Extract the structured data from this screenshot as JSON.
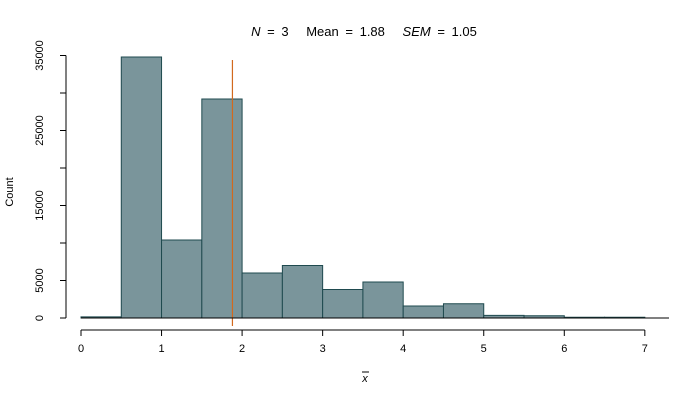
{
  "chart_data": {
    "type": "bar",
    "title": {
      "n_label": "N",
      "n_value": "3",
      "mean_label": "Mean",
      "mean_value": "1.88",
      "sem_label": "SEM",
      "sem_value": "1.05",
      "equals": "="
    },
    "xlabel": "x",
    "ylabel": "Count",
    "xlim": [
      0,
      7.3
    ],
    "ylim": [
      0,
      36000
    ],
    "x_ticks": [
      0,
      1,
      2,
      3,
      4,
      5,
      6,
      7
    ],
    "x_tick_labels": [
      "0",
      "1",
      "2",
      "3",
      "4",
      "5",
      "6",
      "7"
    ],
    "y_ticks": [
      0,
      5000,
      15000,
      25000,
      35000
    ],
    "y_tick_labels": [
      "0",
      "5000",
      "15000",
      "25000",
      "35000"
    ],
    "bins": [
      {
        "x0": 0.0,
        "x1": 0.5,
        "count": 150
      },
      {
        "x0": 0.5,
        "x1": 1.0,
        "count": 34800
      },
      {
        "x0": 1.0,
        "x1": 1.5,
        "count": 10400
      },
      {
        "x0": 1.5,
        "x1": 2.0,
        "count": 29200
      },
      {
        "x0": 2.0,
        "x1": 2.5,
        "count": 6000
      },
      {
        "x0": 2.5,
        "x1": 3.0,
        "count": 7000
      },
      {
        "x0": 3.0,
        "x1": 3.5,
        "count": 3800
      },
      {
        "x0": 3.5,
        "x1": 4.0,
        "count": 4800
      },
      {
        "x0": 4.0,
        "x1": 4.5,
        "count": 1600
      },
      {
        "x0": 4.5,
        "x1": 5.0,
        "count": 1900
      },
      {
        "x0": 5.0,
        "x1": 5.5,
        "count": 350
      },
      {
        "x0": 5.5,
        "x1": 6.0,
        "count": 300
      },
      {
        "x0": 6.0,
        "x1": 6.5,
        "count": 100
      },
      {
        "x0": 6.5,
        "x1": 7.0,
        "count": 100
      }
    ],
    "mean_line": 1.88,
    "colors": {
      "bar_fill": "#7a959b",
      "bar_stroke": "#1f4a4f",
      "mean_line": "#d2691e"
    },
    "grid": false,
    "legend": "none"
  }
}
